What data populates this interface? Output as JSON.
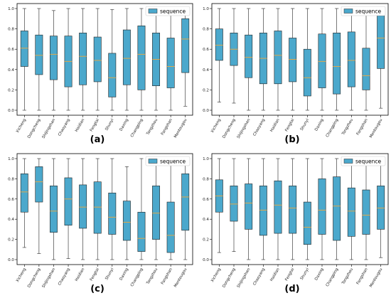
{
  "colors": {
    "box": "#4BA8CC",
    "median": "#F2A93B",
    "edge": "#222222"
  },
  "chart_data": [
    {
      "type": "box",
      "panel_label": "(a)",
      "legend": "sequence",
      "legend_position": "top-right",
      "ylim": [
        0.0,
        1.0
      ],
      "yticks": [
        "0.0",
        "0.2",
        "0.4",
        "0.6",
        "0.8",
        "1.0"
      ],
      "categories": [
        "Xicheng",
        "Dongcheng",
        "Shijingshan",
        "Chaoyang",
        "Haidian",
        "Fengtai",
        "Shunyi",
        "Daxing",
        "Changping",
        "Tongzhou",
        "Fangshan",
        "Mentougou"
      ],
      "boxes": [
        {
          "min": 0.0,
          "q1": 0.43,
          "median": 0.61,
          "q3": 0.78,
          "max": 1.0
        },
        {
          "min": 0.0,
          "q1": 0.35,
          "median": 0.54,
          "q3": 0.74,
          "max": 1.0
        },
        {
          "min": 0.0,
          "q1": 0.3,
          "median": 0.55,
          "q3": 0.73,
          "max": 0.98
        },
        {
          "min": 0.0,
          "q1": 0.23,
          "median": 0.48,
          "q3": 0.73,
          "max": 1.0
        },
        {
          "min": 0.0,
          "q1": 0.25,
          "median": 0.53,
          "q3": 0.76,
          "max": 1.0
        },
        {
          "min": 0.0,
          "q1": 0.28,
          "median": 0.49,
          "q3": 0.72,
          "max": 1.0
        },
        {
          "min": 0.0,
          "q1": 0.13,
          "median": 0.32,
          "q3": 0.56,
          "max": 0.99
        },
        {
          "min": 0.0,
          "q1": 0.25,
          "median": 0.51,
          "q3": 0.79,
          "max": 1.0
        },
        {
          "min": 0.0,
          "q1": 0.2,
          "median": 0.55,
          "q3": 0.83,
          "max": 1.0
        },
        {
          "min": 0.0,
          "q1": 0.24,
          "median": 0.5,
          "q3": 0.76,
          "max": 1.0
        },
        {
          "min": 0.0,
          "q1": 0.22,
          "median": 0.43,
          "q3": 0.71,
          "max": 1.0
        },
        {
          "min": 0.04,
          "q1": 0.37,
          "median": 0.7,
          "q3": 0.9,
          "max": 1.0
        }
      ]
    },
    {
      "type": "box",
      "panel_label": "(b)",
      "legend": "sequence",
      "legend_position": "top-right",
      "ylim": [
        0.0,
        1.0
      ],
      "yticks": [
        "0.0",
        "0.2",
        "0.4",
        "0.6",
        "0.8",
        "1.0"
      ],
      "categories": [
        "Xicheng",
        "Dongcheng",
        "Shijingshan",
        "Chaoyang",
        "Haidian",
        "Fengtai",
        "Shunyi",
        "Daxing",
        "Changping",
        "Tongzhou",
        "Fangshan",
        "Mentougou"
      ],
      "boxes": [
        {
          "min": 0.08,
          "q1": 0.49,
          "median": 0.64,
          "q3": 0.8,
          "max": 1.0
        },
        {
          "min": 0.07,
          "q1": 0.44,
          "median": 0.6,
          "q3": 0.76,
          "max": 1.0
        },
        {
          "min": 0.0,
          "q1": 0.32,
          "median": 0.52,
          "q3": 0.74,
          "max": 1.0
        },
        {
          "min": 0.0,
          "q1": 0.26,
          "median": 0.51,
          "q3": 0.76,
          "max": 1.0
        },
        {
          "min": 0.0,
          "q1": 0.26,
          "median": 0.54,
          "q3": 0.78,
          "max": 1.0
        },
        {
          "min": 0.0,
          "q1": 0.28,
          "median": 0.5,
          "q3": 0.71,
          "max": 1.0
        },
        {
          "min": 0.0,
          "q1": 0.14,
          "median": 0.32,
          "q3": 0.6,
          "max": 1.0
        },
        {
          "min": 0.0,
          "q1": 0.22,
          "median": 0.48,
          "q3": 0.75,
          "max": 1.0
        },
        {
          "min": 0.0,
          "q1": 0.16,
          "median": 0.43,
          "q3": 0.76,
          "max": 1.0
        },
        {
          "min": 0.0,
          "q1": 0.23,
          "median": 0.49,
          "q3": 0.77,
          "max": 1.0
        },
        {
          "min": 0.0,
          "q1": 0.2,
          "median": 0.34,
          "q3": 0.61,
          "max": 1.0
        },
        {
          "min": 0.02,
          "q1": 0.41,
          "median": 0.71,
          "q3": 0.93,
          "max": 1.0
        }
      ]
    },
    {
      "type": "box",
      "panel_label": "(c)",
      "legend": "sequence",
      "legend_position": "top-right",
      "ylim": [
        0.0,
        1.0
      ],
      "yticks": [
        "0.0",
        "0.2",
        "0.4",
        "0.6",
        "0.8",
        "1.0"
      ],
      "categories": [
        "Xicheng",
        "Dongcheng",
        "Shijingshan",
        "Chaoyang",
        "Haidian",
        "Fengtai",
        "Shunyi",
        "Daxing",
        "Changping",
        "Tongzhou",
        "Fangshan",
        "Mentougou"
      ],
      "boxes": [
        {
          "min": 0.12,
          "q1": 0.47,
          "median": 0.67,
          "q3": 0.85,
          "max": 1.0
        },
        {
          "min": 0.06,
          "q1": 0.57,
          "median": 0.77,
          "q3": 0.92,
          "max": 1.0
        },
        {
          "min": 0.0,
          "q1": 0.27,
          "median": 0.48,
          "q3": 0.73,
          "max": 1.0
        },
        {
          "min": 0.01,
          "q1": 0.34,
          "median": 0.6,
          "q3": 0.81,
          "max": 1.0
        },
        {
          "min": 0.0,
          "q1": 0.31,
          "median": 0.52,
          "q3": 0.74,
          "max": 1.0
        },
        {
          "min": 0.0,
          "q1": 0.26,
          "median": 0.52,
          "q3": 0.77,
          "max": 1.0
        },
        {
          "min": 0.0,
          "q1": 0.25,
          "median": 0.42,
          "q3": 0.66,
          "max": 1.0
        },
        {
          "min": 0.0,
          "q1": 0.19,
          "median": 0.37,
          "q3": 0.58,
          "max": 0.92
        },
        {
          "min": 0.0,
          "q1": 0.08,
          "median": 0.21,
          "q3": 0.47,
          "max": 1.0
        },
        {
          "min": 0.0,
          "q1": 0.2,
          "median": 0.46,
          "q3": 0.73,
          "max": 1.0
        },
        {
          "min": 0.0,
          "q1": 0.07,
          "median": 0.24,
          "q3": 0.57,
          "max": 1.0
        },
        {
          "min": 0.0,
          "q1": 0.29,
          "median": 0.62,
          "q3": 0.85,
          "max": 1.0
        }
      ]
    },
    {
      "type": "box",
      "panel_label": "(d)",
      "legend": "sequence",
      "legend_position": "top-right",
      "ylim": [
        0.0,
        1.0
      ],
      "yticks": [
        "0.0",
        "0.2",
        "0.4",
        "0.6",
        "0.8",
        "1.0"
      ],
      "categories": [
        "Xicheng",
        "Dongcheng",
        "Shijingshan",
        "Chaoyang",
        "Haidian",
        "Fengtai",
        "Shunyi",
        "Daxing",
        "Changping",
        "Tongzhou",
        "Fangshan",
        "Mentougou"
      ],
      "boxes": [
        {
          "min": 0.07,
          "q1": 0.47,
          "median": 0.63,
          "q3": 0.79,
          "max": 1.0
        },
        {
          "min": 0.08,
          "q1": 0.38,
          "median": 0.55,
          "q3": 0.73,
          "max": 1.0
        },
        {
          "min": 0.0,
          "q1": 0.3,
          "median": 0.56,
          "q3": 0.75,
          "max": 1.0
        },
        {
          "min": 0.0,
          "q1": 0.24,
          "median": 0.49,
          "q3": 0.73,
          "max": 1.0
        },
        {
          "min": 0.0,
          "q1": 0.26,
          "median": 0.54,
          "q3": 0.78,
          "max": 1.0
        },
        {
          "min": 0.0,
          "q1": 0.26,
          "median": 0.51,
          "q3": 0.73,
          "max": 1.0
        },
        {
          "min": 0.0,
          "q1": 0.15,
          "median": 0.32,
          "q3": 0.57,
          "max": 1.0
        },
        {
          "min": 0.0,
          "q1": 0.25,
          "median": 0.49,
          "q3": 0.8,
          "max": 1.0
        },
        {
          "min": 0.0,
          "q1": 0.19,
          "median": 0.53,
          "q3": 0.82,
          "max": 1.0
        },
        {
          "min": 0.0,
          "q1": 0.23,
          "median": 0.48,
          "q3": 0.71,
          "max": 1.0
        },
        {
          "min": 0.0,
          "q1": 0.25,
          "median": 0.44,
          "q3": 0.69,
          "max": 1.0
        },
        {
          "min": 0.02,
          "q1": 0.3,
          "median": 0.51,
          "q3": 0.73,
          "max": 1.0
        }
      ]
    }
  ]
}
